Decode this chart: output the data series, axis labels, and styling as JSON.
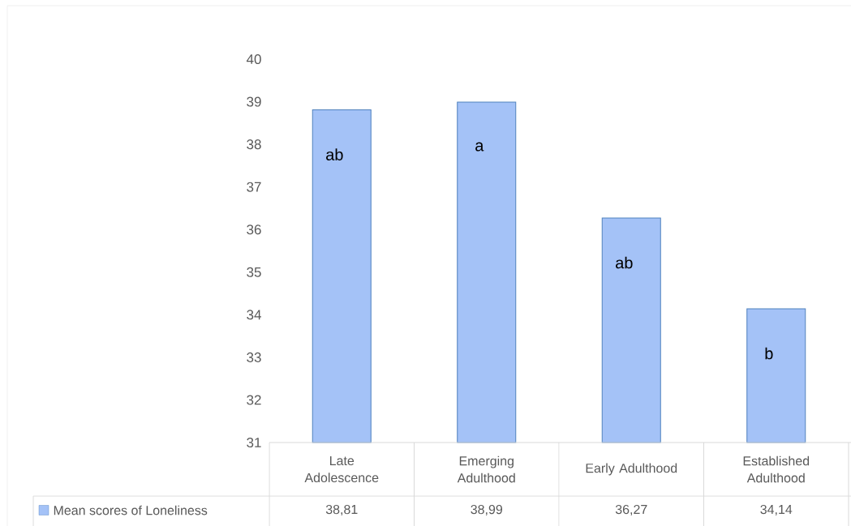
{
  "chart_data": {
    "type": "bar",
    "categories": [
      "Late Adolescence",
      "Emerging Adulthood",
      "Early Adulthood",
      "Established Adulthood"
    ],
    "series": [
      {
        "name": "Mean scores of Loneliness",
        "color": "#a4c2f7",
        "values": [
          38.81,
          38.99,
          36.27,
          34.14
        ],
        "value_labels": [
          "38,81",
          "38,99",
          "36,27",
          "34,14"
        ]
      }
    ],
    "ylim": [
      31,
      40
    ],
    "yticks": [
      31,
      32,
      33,
      34,
      35,
      36,
      37,
      38,
      39,
      40
    ],
    "legend": "bottom left",
    "annotations": [
      "ab",
      "a",
      "ab",
      "b"
    ]
  }
}
